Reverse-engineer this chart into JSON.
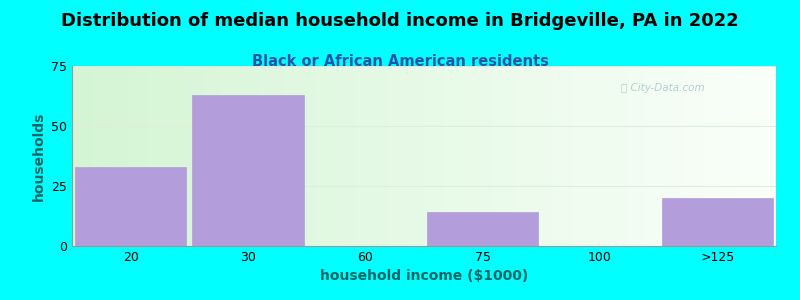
{
  "title": "Distribution of median household income in Bridgeville, PA in 2022",
  "subtitle": "Black or African American residents",
  "xlabel": "household income ($1000)",
  "ylabel": "households",
  "background_color": "#00FFFF",
  "plot_bg_color_left": "#d4f5d4",
  "plot_bg_color_right": "#f8fff8",
  "bar_color": "#b39ddb",
  "categories": [
    "20",
    "30",
    "60",
    "75",
    "100",
    ">125"
  ],
  "values": [
    33,
    63,
    0,
    14,
    0,
    20
  ],
  "ylim": [
    0,
    75
  ],
  "yticks": [
    0,
    25,
    50,
    75
  ],
  "bar_width": 0.95,
  "title_fontsize": 13,
  "subtitle_fontsize": 10.5,
  "axis_label_fontsize": 10,
  "tick_fontsize": 9,
  "title_color": "#000000",
  "subtitle_color": "#2255aa",
  "axis_label_color": "#006666",
  "tick_color": "#000000",
  "watermark_text": "ⓘ City-Data.com",
  "watermark_color": "#b0c8c8",
  "grid_color": "#ddeedd",
  "spine_color": "#999999"
}
